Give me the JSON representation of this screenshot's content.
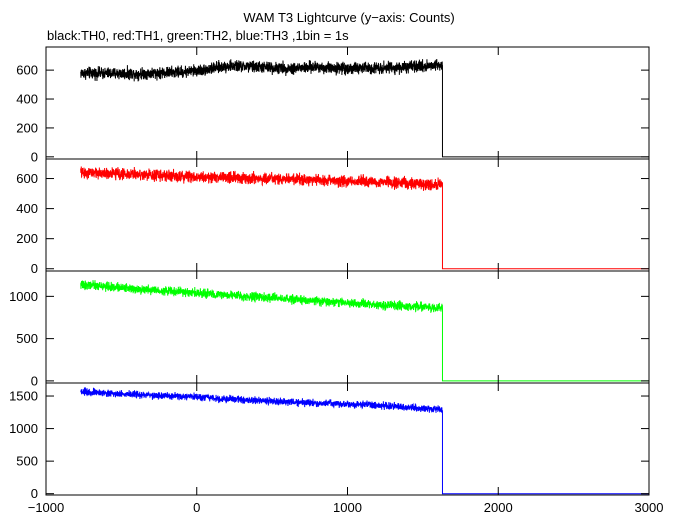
{
  "chart_data": {
    "type": "line",
    "title": "WAM T3 Lightcurve (y−axis: Counts)",
    "subtitle": "black:TH0, red:TH1, green:TH2, blue:TH3 ,1bin = 1s",
    "xlim": [
      -1000,
      3000
    ],
    "x_ticks": [
      -1000,
      0,
      1000,
      2000,
      3000
    ],
    "x_tick_labels": [
      "−1000",
      "0",
      "1000",
      "2000",
      "3000"
    ],
    "grid": false,
    "legend": "none",
    "panels": [
      {
        "series": "TH0",
        "color": "#000000",
        "ylim": [
          -15,
          760
        ],
        "y_ticks": [
          0,
          200,
          400,
          600
        ],
        "y_tick_labels": [
          "0",
          "200",
          "400",
          "600"
        ],
        "data_x_range": [
          -770,
          1630
        ],
        "drop_x": 1630,
        "after_value": 0,
        "trend": [
          [
            -770,
            580
          ],
          [
            -400,
            575
          ],
          [
            -150,
            585
          ],
          [
            0,
            595
          ],
          [
            100,
            610
          ],
          [
            200,
            628
          ],
          [
            400,
            622
          ],
          [
            600,
            612
          ],
          [
            800,
            620
          ],
          [
            1000,
            612
          ],
          [
            1200,
            618
          ],
          [
            1400,
            618
          ],
          [
            1630,
            640
          ]
        ],
        "noise_amplitude": 30
      },
      {
        "series": "TH1",
        "color": "#ff0000",
        "ylim": [
          -15,
          730
        ],
        "y_ticks": [
          0,
          200,
          400,
          600
        ],
        "y_tick_labels": [
          "0",
          "200",
          "400",
          "600"
        ],
        "data_x_range": [
          -770,
          1630
        ],
        "drop_x": 1630,
        "after_value": 0,
        "trend": [
          [
            -770,
            640
          ],
          [
            -400,
            628
          ],
          [
            0,
            612
          ],
          [
            400,
            600
          ],
          [
            800,
            590
          ],
          [
            1200,
            578
          ],
          [
            1630,
            560
          ]
        ],
        "noise_amplitude": 28
      },
      {
        "series": "TH2",
        "color": "#00ff00",
        "ylim": [
          -25,
          1300
        ],
        "y_ticks": [
          0,
          500,
          1000
        ],
        "y_tick_labels": [
          "0",
          "500",
          "1000"
        ],
        "data_x_range": [
          -770,
          1630
        ],
        "drop_x": 1630,
        "after_value": 0,
        "trend": [
          [
            -770,
            1140
          ],
          [
            -400,
            1090
          ],
          [
            0,
            1040
          ],
          [
            400,
            990
          ],
          [
            800,
            945
          ],
          [
            1200,
            900
          ],
          [
            1630,
            860
          ]
        ],
        "noise_amplitude": 38
      },
      {
        "series": "TH3",
        "color": "#0000ff",
        "ylim": [
          -20,
          1700
        ],
        "y_ticks": [
          0,
          500,
          1000,
          1500
        ],
        "y_tick_labels": [
          "0",
          "500",
          "1000",
          "1500"
        ],
        "data_x_range": [
          -770,
          1630
        ],
        "drop_x": 1630,
        "after_value": 0,
        "trend": [
          [
            -770,
            1570
          ],
          [
            -400,
            1520
          ],
          [
            0,
            1480
          ],
          [
            400,
            1430
          ],
          [
            800,
            1390
          ],
          [
            1200,
            1360
          ],
          [
            1630,
            1290
          ]
        ],
        "noise_amplitude": 40
      }
    ]
  }
}
